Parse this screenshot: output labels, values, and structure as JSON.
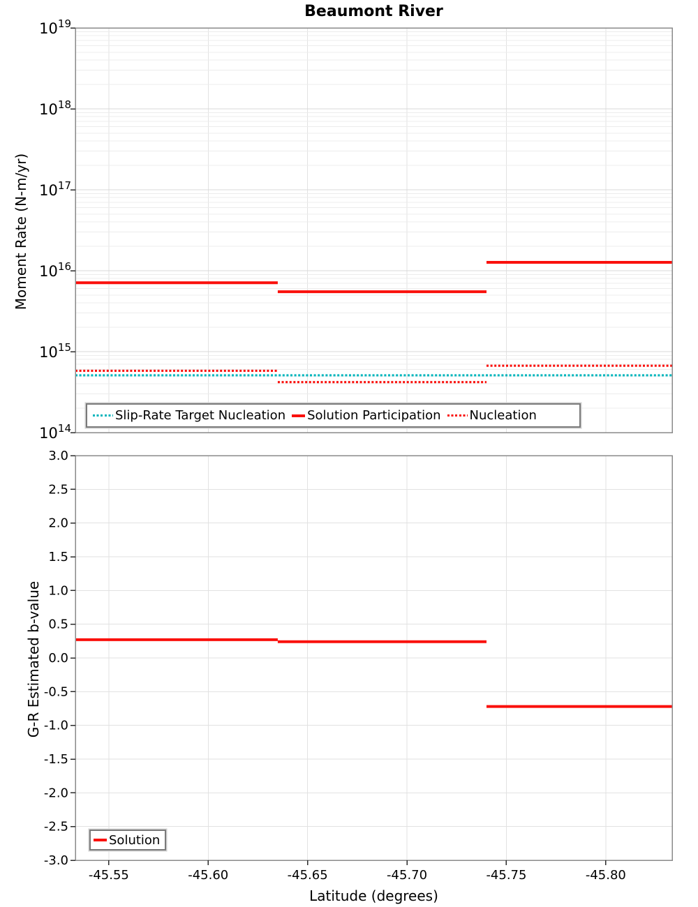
{
  "figure": {
    "title": "Beaumont River"
  },
  "chart_data": [
    {
      "type": "line",
      "subtype": "step-segments",
      "title": "Beaumont River",
      "ylabel": "Moment Rate (N-m/yr)",
      "yscale": "log",
      "ylim_exponents": [
        14,
        19
      ],
      "ytick_base": "10",
      "ytick_exponents": [
        "19",
        "18",
        "17",
        "16",
        "15",
        "14"
      ],
      "xlim": [
        -45.5332,
        -45.8334
      ],
      "xticks": [
        -45.55,
        -45.6,
        -45.65,
        -45.7,
        -45.75,
        -45.8
      ],
      "xtick_labels": [
        "-45.55",
        "-45.60",
        "-45.65",
        "-45.70",
        "-45.75",
        "-45.80"
      ],
      "grid": true,
      "legend_position": "bottom-left-wide",
      "series": [
        {
          "name": "Slip-Rate Target Nucleation",
          "style": "dotted",
          "color": "#00b5bc",
          "segments": [
            {
              "x0": -45.5332,
              "x1": -45.8334,
              "y": 510000000000000.0
            }
          ]
        },
        {
          "name": "Solution Participation",
          "style": "solid",
          "color": "#fa100c",
          "segments": [
            {
              "x0": -45.5332,
              "x1": -45.635,
              "y": 7100000000000000.0
            },
            {
              "x0": -45.635,
              "x1": -45.74,
              "y": 5500000000000000.0
            },
            {
              "x0": -45.74,
              "x1": -45.8334,
              "y": 1.27e+16
            }
          ]
        },
        {
          "name": "Nucleation",
          "style": "dotted",
          "color": "#fa100c",
          "segments": [
            {
              "x0": -45.5332,
              "x1": -45.635,
              "y": 580000000000000.0
            },
            {
              "x0": -45.635,
              "x1": -45.74,
              "y": 420000000000000.0
            },
            {
              "x0": -45.74,
              "x1": -45.8334,
              "y": 670000000000000.0
            }
          ]
        }
      ]
    },
    {
      "type": "line",
      "subtype": "step-segments",
      "ylabel": "G-R Estimated b-value",
      "xlabel": "Latitude (degrees)",
      "yscale": "linear",
      "ylim": [
        -3.0,
        3.0
      ],
      "yticks": [
        3.0,
        2.5,
        2.0,
        1.5,
        1.0,
        0.5,
        0.0,
        -0.5,
        -1.0,
        -1.5,
        -2.0,
        -2.5,
        -3.0
      ],
      "ytick_labels": [
        "3.0",
        "2.5",
        "2.0",
        "1.5",
        "1.0",
        "0.5",
        "0.0",
        "-0.5",
        "-1.0",
        "-1.5",
        "-2.0",
        "-2.5",
        "-3.0"
      ],
      "xlim": [
        -45.5332,
        -45.8334
      ],
      "xticks": [
        -45.55,
        -45.6,
        -45.65,
        -45.7,
        -45.75,
        -45.8
      ],
      "xtick_labels": [
        "-45.55",
        "-45.60",
        "-45.65",
        "-45.70",
        "-45.75",
        "-45.80"
      ],
      "grid": true,
      "legend_position": "bottom-left",
      "series": [
        {
          "name": "Solution",
          "style": "solid",
          "color": "#fa100c",
          "segments": [
            {
              "x0": -45.5332,
              "x1": -45.635,
              "y": 0.27
            },
            {
              "x0": -45.635,
              "x1": -45.74,
              "y": 0.24
            },
            {
              "x0": -45.74,
              "x1": -45.8334,
              "y": -0.72
            }
          ]
        }
      ]
    }
  ],
  "colors": {
    "red_line": "#fa100c",
    "cyan_line": "#00b5bc",
    "frame": "#8a8a8a",
    "grid": "#e2e2e2",
    "tick": "#2b2b2b",
    "text": "#000000"
  }
}
